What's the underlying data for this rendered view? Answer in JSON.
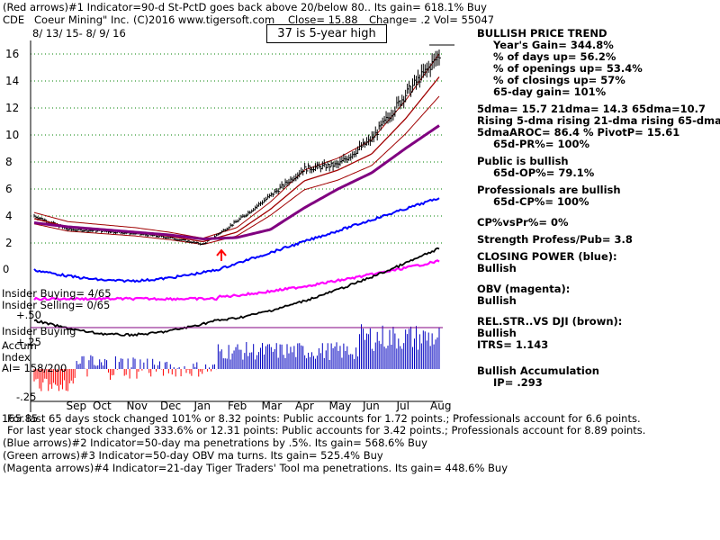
{
  "header": {
    "line1": "(Red arrows)#1 Indicator=90-d St-PctD goes back above 20/below 80.. Its gain= 618.1% Buy",
    "ticker": "CDE",
    "company": "Coeur Mining\" Inc.",
    "source": "(C)2016 www.tigersoft.com",
    "close": "Close= 15.88",
    "change": "Change= .2",
    "vol": "Vol= 55047",
    "date_range": "8/ 13/ 15- 8/ 9/ 16",
    "note": "37 is 5-year high"
  },
  "right_panel": [
    {
      "text": "BULLISH PRICE TREND",
      "indent": 0,
      "gap": 0
    },
    {
      "text": "Year's Gain= 344.8%",
      "indent": 18,
      "gap": 0
    },
    {
      "text": "% of days up= 56.2%",
      "indent": 18,
      "gap": 0
    },
    {
      "text": "% of openings up= 53.4%",
      "indent": 18,
      "gap": 0
    },
    {
      "text": "% of closings up= 57%",
      "indent": 18,
      "gap": 0
    },
    {
      "text": "65-day gain= 101%",
      "indent": 18,
      "gap": 0
    },
    {
      "text": "5dma= 15.7 21dma= 14.3 65dma=10.7",
      "indent": 0,
      "gap": 6
    },
    {
      "text": "Rising 5-dma rising 21-dma rising 65-dma",
      "indent": 0,
      "gap": 0
    },
    {
      "text": "5dmaAROC= 86.4 %  PivotP= 15.61",
      "indent": 0,
      "gap": 0
    },
    {
      "text": "65d-PR%= 100%",
      "indent": 18,
      "gap": 0
    },
    {
      "text": "Public is bullish",
      "indent": 0,
      "gap": 6
    },
    {
      "text": "65d-OP%= 79.1%",
      "indent": 18,
      "gap": 0
    },
    {
      "text": "Professionals are bullish",
      "indent": 0,
      "gap": 6
    },
    {
      "text": "65d-CP%= 100%",
      "indent": 18,
      "gap": 0
    },
    {
      "text": "CP%vsPr%=  0%",
      "indent": 0,
      "gap": 10
    },
    {
      "text": "Strength Profess/Pub= 3.8",
      "indent": 0,
      "gap": 6
    },
    {
      "text": "CLOSING POWER (blue):",
      "indent": 0,
      "gap": 6
    },
    {
      "text": "Bullish",
      "indent": 0,
      "gap": 0
    },
    {
      "text": "OBV (magenta):",
      "indent": 0,
      "gap": 10
    },
    {
      "text": "Bullish",
      "indent": 0,
      "gap": 0
    },
    {
      "text": "REL.STR..VS DJI (brown):",
      "indent": 0,
      "gap": 10
    },
    {
      "text": "Bullish",
      "indent": 0,
      "gap": 0
    },
    {
      "text": "ITRS= 1.143",
      "indent": 0,
      "gap": 0
    },
    {
      "text": "Bullish Accumulation",
      "indent": 0,
      "gap": 16
    },
    {
      "text": "IP=  .293",
      "indent": 18,
      "gap": 0
    }
  ],
  "left_labels": {
    "insider_buying": "Insider Buying= 4/65",
    "insider_selling": "Insider Selling= 0/65",
    "plus50": "+.50",
    "insider_buying2": "Insider Buying",
    "plus25": "+.25",
    "accum": "Accum",
    "index": "Index",
    "ai": "AI= 158/200",
    "minus25": "-.25",
    "zero_label": "0"
  },
  "footer": {
    "last65": "For last 65 days stock changed  101% or  8.32 points:  Public accounts for  1.72 points.;  Professionals account for  6.6 points.",
    "lastyear": "For last year stock changed  333.6% or  12.31 points:  Public accounts for  3.42 points.;  Professionals account for  8.89 points.",
    "overlap": "165.85",
    "blue": "(Blue arrows)#2 Indicator=50-day ma penetrations by .5%. Its gain= 568.6% Buy",
    "green": "(Green arrows)#3 Indicator=50-day OBV ma turns. Its gain= 525.4% Buy",
    "magenta": "(Magenta arrows)#4 Indicator=21-day Tiger Traders' Tool ma penetrations. Its gain= 448.6% Buy"
  },
  "colors": {
    "price": "#000000",
    "ma21": "#a00000",
    "ma65": "#800080",
    "grid": "#008000",
    "closing_power": "#0000ff",
    "obv": "#ff00ff",
    "accum_pos": "#0000c0",
    "accum_neg": "#ff0000"
  },
  "chart_data": {
    "type": "line",
    "title": "CDE Coeur Mining Inc. daily price with 21-day and 65-day moving averages",
    "xlabel": "",
    "ylabel": "",
    "ylim": [
      0,
      17
    ],
    "y_ticks": [
      2,
      4,
      6,
      8,
      10,
      12,
      14,
      16
    ],
    "x_months": [
      "Sep",
      "Oct",
      "Nov",
      "Dec",
      "Jan",
      "Feb",
      "Mar",
      "Apr",
      "May",
      "Jun",
      "Jul",
      "Aug"
    ],
    "x": [
      "Aug",
      "Sep",
      "Oct",
      "Nov",
      "Dec",
      "Jan",
      "Feb",
      "Mar",
      "Apr",
      "May",
      "Jun",
      "Jul",
      "Aug"
    ],
    "series": [
      {
        "name": "Close",
        "values": [
          4.0,
          3.0,
          2.9,
          2.7,
          2.4,
          1.9,
          3.6,
          5.5,
          7.5,
          7.8,
          9.7,
          13.0,
          15.88
        ]
      },
      {
        "name": "21-dma",
        "values": [
          3.8,
          3.2,
          3.0,
          2.8,
          2.5,
          2.1,
          2.8,
          4.5,
          6.6,
          7.4,
          8.6,
          11.2,
          14.3
        ]
      },
      {
        "name": "65-dma",
        "values": [
          3.5,
          3.2,
          3.0,
          2.8,
          2.6,
          2.3,
          2.4,
          3.0,
          4.6,
          6.0,
          7.2,
          9.0,
          10.7
        ]
      }
    ],
    "annotation": "37 is 5-year high"
  }
}
